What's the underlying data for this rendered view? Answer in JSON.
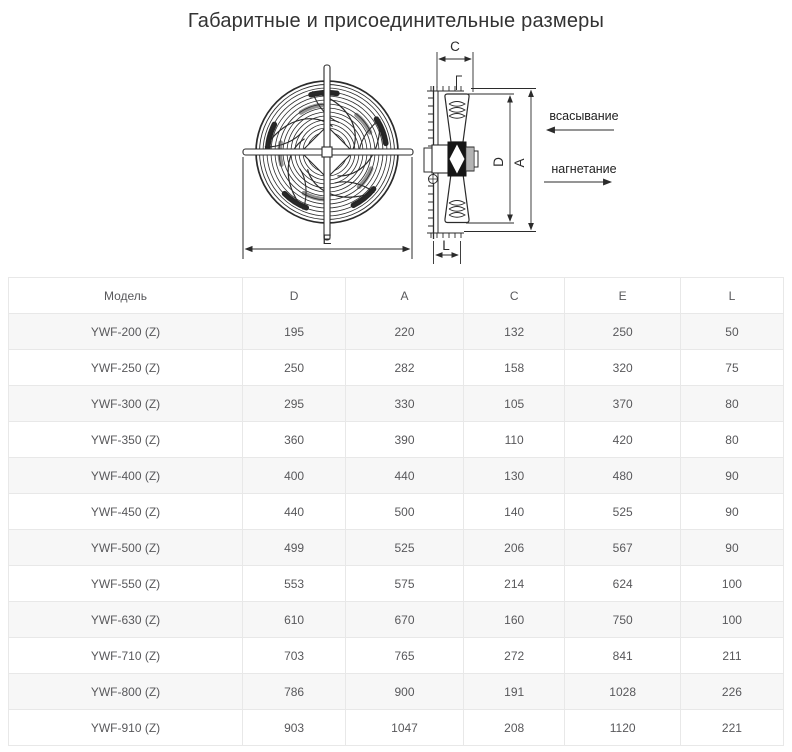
{
  "page": {
    "title": "Габаритные и присоединительные размеры"
  },
  "diagram": {
    "dims": {
      "C": "C",
      "D": "D",
      "A": "A",
      "E": "E",
      "L": "L"
    },
    "flow": {
      "suction": "всасывание",
      "discharge": "нагнетание"
    }
  },
  "table": {
    "headers": [
      "Модель",
      "D",
      "A",
      "C",
      "E",
      "L"
    ],
    "rows": [
      [
        "YWF-200 (Z)",
        "195",
        "220",
        "132",
        "250",
        "50"
      ],
      [
        "YWF-250 (Z)",
        "250",
        "282",
        "158",
        "320",
        "75"
      ],
      [
        "YWF-300 (Z)",
        "295",
        "330",
        "105",
        "370",
        "80"
      ],
      [
        "YWF-350 (Z)",
        "360",
        "390",
        "110",
        "420",
        "80"
      ],
      [
        "YWF-400 (Z)",
        "400",
        "440",
        "130",
        "480",
        "90"
      ],
      [
        "YWF-450 (Z)",
        "440",
        "500",
        "140",
        "525",
        "90"
      ],
      [
        "YWF-500 (Z)",
        "499",
        "525",
        "206",
        "567",
        "90"
      ],
      [
        "YWF-550 (Z)",
        "553",
        "575",
        "214",
        "624",
        "100"
      ],
      [
        "YWF-630 (Z)",
        "610",
        "670",
        "160",
        "750",
        "100"
      ],
      [
        "YWF-710 (Z)",
        "703",
        "765",
        "272",
        "841",
        "211"
      ],
      [
        "YWF-800 (Z)",
        "786",
        "900",
        "191",
        "1028",
        "226"
      ],
      [
        "YWF-910 (Z)",
        "903",
        "1047",
        "208",
        "1120",
        "221"
      ]
    ]
  }
}
